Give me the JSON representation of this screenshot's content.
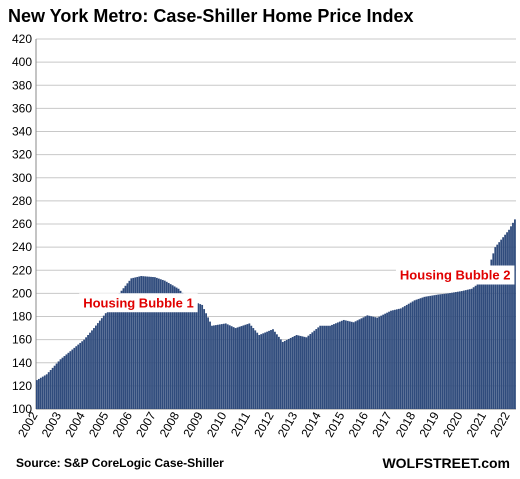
{
  "chart_data": {
    "type": "bar",
    "title": "New York Metro: Case-Shiller Home Price Index",
    "xlabel": "",
    "ylabel": "",
    "ylim": [
      100,
      420
    ],
    "yticks": [
      100,
      120,
      140,
      160,
      180,
      200,
      220,
      240,
      260,
      280,
      300,
      320,
      340,
      360,
      380,
      400,
      420
    ],
    "xticks": [
      "2002",
      "2003",
      "2004",
      "2005",
      "2006",
      "2007",
      "2008",
      "2009",
      "2010",
      "2011",
      "2012",
      "2013",
      "2014",
      "2015",
      "2016",
      "2017",
      "2018",
      "2019",
      "2020",
      "2021",
      "2022"
    ],
    "frequency": "monthly",
    "start": "2002-01",
    "end": "2022-04",
    "grid": true,
    "bar_color": "#2f4b7c",
    "anchors": [
      [
        "2002-01",
        125
      ],
      [
        "2002-06",
        130
      ],
      [
        "2003-01",
        143
      ],
      [
        "2003-06",
        150
      ],
      [
        "2004-01",
        160
      ],
      [
        "2004-06",
        170
      ],
      [
        "2005-01",
        185
      ],
      [
        "2005-06",
        198
      ],
      [
        "2006-01",
        213
      ],
      [
        "2006-06",
        215
      ],
      [
        "2007-01",
        214
      ],
      [
        "2007-06",
        211
      ],
      [
        "2008-01",
        204
      ],
      [
        "2008-06",
        195
      ],
      [
        "2009-01",
        190
      ],
      [
        "2009-06",
        172
      ],
      [
        "2010-01",
        174
      ],
      [
        "2010-06",
        170
      ],
      [
        "2011-01",
        174
      ],
      [
        "2011-06",
        164
      ],
      [
        "2012-01",
        169
      ],
      [
        "2012-06",
        158
      ],
      [
        "2013-01",
        164
      ],
      [
        "2013-06",
        162
      ],
      [
        "2014-01",
        172
      ],
      [
        "2014-06",
        172
      ],
      [
        "2015-01",
        177
      ],
      [
        "2015-06",
        175
      ],
      [
        "2016-01",
        181
      ],
      [
        "2016-06",
        179
      ],
      [
        "2017-01",
        185
      ],
      [
        "2017-06",
        187
      ],
      [
        "2018-01",
        194
      ],
      [
        "2018-06",
        197
      ],
      [
        "2019-01",
        199
      ],
      [
        "2019-06",
        200
      ],
      [
        "2020-01",
        202
      ],
      [
        "2020-06",
        204
      ],
      [
        "2021-01",
        213
      ],
      [
        "2021-06",
        240
      ],
      [
        "2022-01",
        255
      ],
      [
        "2022-04",
        264
      ]
    ],
    "annotations": [
      {
        "text": "Housing Bubble 1",
        "x": "2004-01",
        "y": 188
      },
      {
        "text": "Housing Bubble 2",
        "x": "2017-06",
        "y": 212
      }
    ]
  },
  "footer": {
    "source": "Source: S&P CoreLogic Case-Shiller",
    "brand": "WOLFSTREET.com"
  }
}
